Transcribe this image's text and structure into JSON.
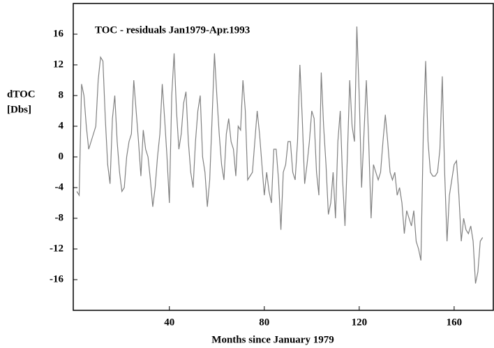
{
  "chart_data": {
    "type": "line",
    "title": "TOC - residuals Jan1979-Apr.1993",
    "xlabel": "Months since January 1979",
    "ylabel": [
      "dTOC",
      "[Dbs]"
    ],
    "xlim": [
      -0.5,
      176.5
    ],
    "ylim": [
      -20,
      20
    ],
    "xticks": [
      40,
      80,
      120,
      160
    ],
    "yticks": [
      -16,
      -12,
      -8,
      -4,
      0,
      4,
      8,
      12,
      16
    ],
    "x": [
      1,
      2,
      3,
      4,
      5,
      6,
      7,
      8,
      9,
      10,
      11,
      12,
      13,
      14,
      15,
      16,
      17,
      18,
      19,
      20,
      21,
      22,
      23,
      24,
      25,
      26,
      27,
      28,
      29,
      30,
      31,
      32,
      33,
      34,
      35,
      36,
      37,
      38,
      39,
      40,
      41,
      42,
      43,
      44,
      45,
      46,
      47,
      48,
      49,
      50,
      51,
      52,
      53,
      54,
      55,
      56,
      57,
      58,
      59,
      60,
      61,
      62,
      63,
      64,
      65,
      66,
      67,
      68,
      69,
      70,
      71,
      72,
      73,
      74,
      75,
      76,
      77,
      78,
      79,
      80,
      81,
      82,
      83,
      84,
      85,
      86,
      87,
      88,
      89,
      90,
      91,
      92,
      93,
      94,
      95,
      96,
      97,
      98,
      99,
      100,
      101,
      102,
      103,
      104,
      105,
      106,
      107,
      108,
      109,
      110,
      111,
      112,
      113,
      114,
      115,
      116,
      117,
      118,
      119,
      120,
      121,
      122,
      123,
      124,
      125,
      126,
      127,
      128,
      129,
      130,
      131,
      132,
      133,
      134,
      135,
      136,
      137,
      138,
      139,
      140,
      141,
      142,
      143,
      144,
      145,
      146,
      147,
      148,
      149,
      150,
      151,
      152,
      153,
      154,
      155,
      156,
      157,
      158,
      159,
      160,
      161,
      162,
      163,
      164,
      165,
      166,
      167,
      168,
      169,
      170,
      171,
      172
    ],
    "series": [
      {
        "color": "#808080",
        "values": [
          -4.5,
          -5,
          9.5,
          8,
          4,
          1,
          2,
          3,
          4,
          10,
          13,
          12.5,
          5,
          -1,
          -3.5,
          5,
          8,
          2,
          -2,
          -4.5,
          -4,
          0,
          2,
          3,
          10,
          6,
          2,
          -2.5,
          3.5,
          1,
          0,
          -3,
          -6.5,
          -4,
          0,
          3,
          9.5,
          5,
          0,
          -6,
          8,
          13.5,
          6,
          1,
          3,
          7,
          8.5,
          2,
          -2,
          -4,
          2,
          6,
          8,
          0,
          -2,
          -6.5,
          -3,
          5,
          13.5,
          8,
          3,
          -1,
          -3,
          3,
          5,
          2,
          1,
          -2.5,
          4,
          3.5,
          10,
          6,
          -3,
          -2.5,
          -2,
          2,
          6,
          3,
          -1,
          -5,
          -2,
          -4.5,
          -6,
          1,
          1,
          -3,
          -9.5,
          -2,
          -1,
          2,
          2,
          -2,
          -3,
          2,
          12,
          5,
          -3.5,
          -1,
          2,
          6,
          5,
          -2,
          -5,
          11,
          4,
          -1,
          -7.5,
          -6,
          -2,
          -8,
          2,
          6,
          -3,
          -9,
          0,
          10,
          4,
          2,
          17,
          8,
          -4,
          3,
          10,
          2,
          -8,
          -1,
          -2,
          -3,
          -2,
          2,
          5.5,
          2,
          -2,
          -3,
          -2,
          -5,
          -4,
          -6,
          -10,
          -7,
          -8,
          -9,
          -7,
          -11,
          -12,
          -13.5,
          3,
          12.5,
          2,
          -2,
          -2.5,
          -2.5,
          -2,
          1,
          10.5,
          -2,
          -11,
          -5,
          -3,
          -1,
          -0.5,
          -5,
          -11,
          -8,
          -9.5,
          -10,
          -9,
          -11,
          -16.5,
          -15,
          -11,
          -10.5
        ]
      }
    ]
  }
}
